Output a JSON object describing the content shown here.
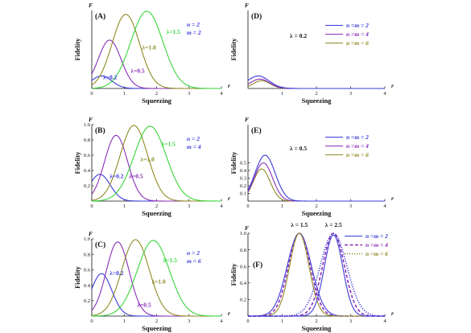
{
  "figure": {
    "xlabel": "Squeezing",
    "ylabel": "Fidelity",
    "yaxis_letter": "F",
    "xaxis_letter": "r"
  },
  "colors": {
    "blue": "#3b3bdb",
    "purple": "#8a2fb8",
    "olive": "#8f8a24",
    "green": "#37d63a",
    "axis": "#111111"
  },
  "chart_data": [
    {
      "type": "line",
      "panel": "A",
      "label": "(A)",
      "xlim": [
        0,
        4
      ],
      "ylim": [
        0,
        1
      ],
      "xticks": [
        0,
        1,
        2,
        3,
        4
      ],
      "yticks": [],
      "params": [
        "n = 2",
        "m = 2"
      ],
      "series": [
        {
          "color": "blue",
          "peak_x": 0.3,
          "peak_y": 0.16,
          "width": 0.45
        },
        {
          "color": "purple",
          "peak_x": 0.55,
          "peak_y": 0.62,
          "width": 0.5
        },
        {
          "color": "olive",
          "peak_x": 1.05,
          "peak_y": 0.95,
          "width": 0.6
        },
        {
          "color": "green",
          "peak_x": 1.7,
          "peak_y": 0.99,
          "width": 0.7
        }
      ],
      "annotations": [
        {
          "text": "λ=0.2",
          "color": "blue",
          "x": 0.35,
          "y": 0.12
        },
        {
          "text": "λ=0.5",
          "color": "purple",
          "x": 1.2,
          "y": 0.2
        },
        {
          "text": "λ=1.0",
          "color": "olive",
          "x": 1.55,
          "y": 0.5
        },
        {
          "text": "λ=1.5",
          "color": "green",
          "x": 2.3,
          "y": 0.7
        }
      ]
    },
    {
      "type": "line",
      "panel": "D",
      "label": "(D)",
      "xlim": [
        0,
        4
      ],
      "ylim": [
        0,
        1
      ],
      "xticks": [
        1,
        2,
        3,
        4
      ],
      "yticks": [],
      "param_text": "λ = 0.2",
      "legend": [
        {
          "text": "n =m = 2",
          "color": "blue"
        },
        {
          "text": "n =m = 4",
          "color": "purple"
        },
        {
          "text": "n =m = 6",
          "color": "olive"
        }
      ],
      "series": [
        {
          "color": "olive",
          "peak_x": 0.4,
          "peak_y": 0.1,
          "width": 0.35
        },
        {
          "color": "purple",
          "peak_x": 0.35,
          "peak_y": 0.12,
          "width": 0.4
        },
        {
          "color": "blue",
          "peak_x": 0.3,
          "peak_y": 0.16,
          "width": 0.45
        }
      ]
    },
    {
      "type": "line",
      "panel": "B",
      "label": "(B)",
      "xlim": [
        0,
        4
      ],
      "ylim": [
        0,
        1
      ],
      "xticks": [
        0,
        1,
        2,
        3,
        4
      ],
      "yticks": [
        0.2,
        0.4,
        0.6,
        0.8,
        1.0
      ],
      "ytick_labels": [
        "0.2",
        "0.4",
        "0.6",
        "0.8",
        "1.0"
      ],
      "params": [
        "n = 2",
        "m = 4"
      ],
      "series": [
        {
          "color": "blue",
          "peak_x": 0.25,
          "peak_y": 0.35,
          "width": 0.45
        },
        {
          "color": "purple",
          "peak_x": 0.75,
          "peak_y": 0.86,
          "width": 0.5
        },
        {
          "color": "olive",
          "peak_x": 1.3,
          "peak_y": 0.99,
          "width": 0.6
        },
        {
          "color": "green",
          "peak_x": 1.8,
          "peak_y": 0.98,
          "width": 0.7
        }
      ],
      "annotations": [
        {
          "text": "λ=0.2",
          "color": "blue",
          "x": 0.55,
          "y": 0.3
        },
        {
          "text": "λ=0.5",
          "color": "purple",
          "x": 1.15,
          "y": 0.3
        },
        {
          "text": "λ=1.0",
          "color": "olive",
          "x": 1.5,
          "y": 0.52
        },
        {
          "text": "λ=1.5",
          "color": "green",
          "x": 2.15,
          "y": 0.72
        }
      ]
    },
    {
      "type": "line",
      "panel": "E",
      "label": "(E)",
      "xlim": [
        0,
        4
      ],
      "ylim": [
        0,
        1
      ],
      "xticks": [
        0,
        1,
        2,
        3,
        4
      ],
      "yticks": [
        0.1,
        0.2,
        0.3,
        0.4,
        0.5
      ],
      "ytick_labels": [
        "0.1",
        "0.2",
        "0.3",
        "0.4",
        "0.5"
      ],
      "param_text": "λ = 0.5",
      "legend": [
        {
          "text": "n =m = 2",
          "color": "blue"
        },
        {
          "text": "n =m = 4",
          "color": "purple"
        },
        {
          "text": "n =m = 6",
          "color": "olive"
        }
      ],
      "series": [
        {
          "color": "olive",
          "peak_x": 0.4,
          "peak_y": 0.42,
          "width": 0.35
        },
        {
          "color": "purple",
          "peak_x": 0.45,
          "peak_y": 0.5,
          "width": 0.38
        },
        {
          "color": "blue",
          "peak_x": 0.5,
          "peak_y": 0.6,
          "width": 0.42
        }
      ]
    },
    {
      "type": "line",
      "panel": "C",
      "label": "(C)",
      "xlim": [
        0,
        4
      ],
      "ylim": [
        0,
        1
      ],
      "xticks": [
        0,
        1,
        2,
        3,
        4
      ],
      "yticks": [
        0.2,
        0.4,
        0.6,
        0.8,
        1.0
      ],
      "ytick_labels": [
        "0.2",
        "0.4",
        "0.6",
        "0.8",
        "1.0"
      ],
      "params": [
        "n = 2",
        "m = 6"
      ],
      "series": [
        {
          "color": "blue",
          "peak_x": 0.3,
          "peak_y": 0.55,
          "width": 0.45
        },
        {
          "color": "purple",
          "peak_x": 0.8,
          "peak_y": 0.96,
          "width": 0.5
        },
        {
          "color": "olive",
          "peak_x": 1.35,
          "peak_y": 0.99,
          "width": 0.6
        },
        {
          "color": "green",
          "peak_x": 1.9,
          "peak_y": 0.98,
          "width": 0.7
        }
      ],
      "annotations": [
        {
          "text": "λ=0.2",
          "color": "blue",
          "x": 0.55,
          "y": 0.53
        },
        {
          "text": "λ=0.5",
          "color": "purple",
          "x": 1.4,
          "y": 0.12
        },
        {
          "text": "λ=1.0",
          "color": "olive",
          "x": 1.85,
          "y": 0.42
        },
        {
          "text": "λ=1.5",
          "color": "green",
          "x": 2.2,
          "y": 0.7
        }
      ]
    },
    {
      "type": "line",
      "panel": "F",
      "label": "(F)",
      "xlim": [
        0,
        4
      ],
      "ylim": [
        0,
        1
      ],
      "xticks": [
        0,
        1,
        2,
        3,
        4
      ],
      "yticks": [
        0.2,
        0.4,
        0.6,
        0.8,
        1.0
      ],
      "ytick_labels": [
        "0.2",
        "0.4",
        "0.6",
        "0.8",
        "1.0"
      ],
      "legend": [
        {
          "text": "n =m = 2",
          "color": "blue",
          "dash": "solid"
        },
        {
          "text": "n =m = 4",
          "color": "purple",
          "dash": "dashed"
        },
        {
          "text": "n =m = 6",
          "color": "olive",
          "dash": "dotted"
        }
      ],
      "series": [
        {
          "color": "blue",
          "dash": "solid",
          "peak_x": 1.5,
          "peak_y": 1.0,
          "width": 0.5
        },
        {
          "color": "purple",
          "dash": "dashed",
          "peak_x": 1.5,
          "peak_y": 1.0,
          "width": 0.45
        },
        {
          "color": "olive",
          "dash": "solid",
          "peak_x": 1.5,
          "peak_y": 1.0,
          "width": 0.4
        },
        {
          "color": "blue",
          "dash": "dotted",
          "peak_x": 2.5,
          "peak_y": 1.0,
          "width": 0.55
        },
        {
          "color": "purple",
          "dash": "dashed",
          "peak_x": 2.5,
          "peak_y": 1.0,
          "width": 0.45
        },
        {
          "color": "blue",
          "dash": "solid",
          "peak_x": 2.5,
          "peak_y": 0.98,
          "width": 0.38
        }
      ],
      "annotations": [
        {
          "text": "λ = 1.5",
          "color": "axis",
          "x": 1.5,
          "y": 1.08
        },
        {
          "text": "λ = 2.5",
          "color": "axis",
          "x": 2.5,
          "y": 1.08
        }
      ]
    }
  ]
}
